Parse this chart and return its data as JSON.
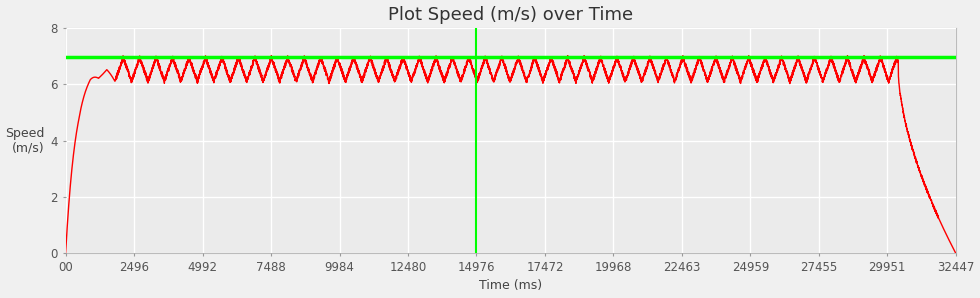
{
  "title": "Plot Speed (m/s) over Time",
  "xlabel": "Time (ms)",
  "ylabel": "Speed\n(m/s)",
  "xlim": [
    0,
    32447
  ],
  "ylim": [
    0,
    8
  ],
  "yticks": [
    0,
    2,
    4,
    6,
    8
  ],
  "xtick_labels": [
    "00",
    "2496",
    "4992",
    "7488",
    "9984",
    "12480",
    "14976",
    "17472",
    "19968",
    "22463",
    "24959",
    "27455",
    "29951",
    "32447"
  ],
  "xtick_values": [
    0,
    2496,
    4992,
    7488,
    9984,
    12480,
    14976,
    17472,
    19968,
    22463,
    24959,
    27455,
    29951,
    32447
  ],
  "top_speed": 6.97,
  "top_speed_line_color": "#00ff00",
  "vertical_line_x": 14976,
  "vertical_line_color": "#00ff00",
  "line_color": "#ff0000",
  "background_color": "#f0f0f0",
  "plot_bg_color": "#ebebeb",
  "grid_color": "#ffffff",
  "title_fontsize": 13,
  "label_fontsize": 9,
  "tick_fontsize": 8.5,
  "accel_end_x": 1800,
  "cruise_end_x": 30350,
  "decel_end_x": 32447,
  "osc_base": 6.1,
  "osc_amp": 0.85,
  "osc_period": 600
}
